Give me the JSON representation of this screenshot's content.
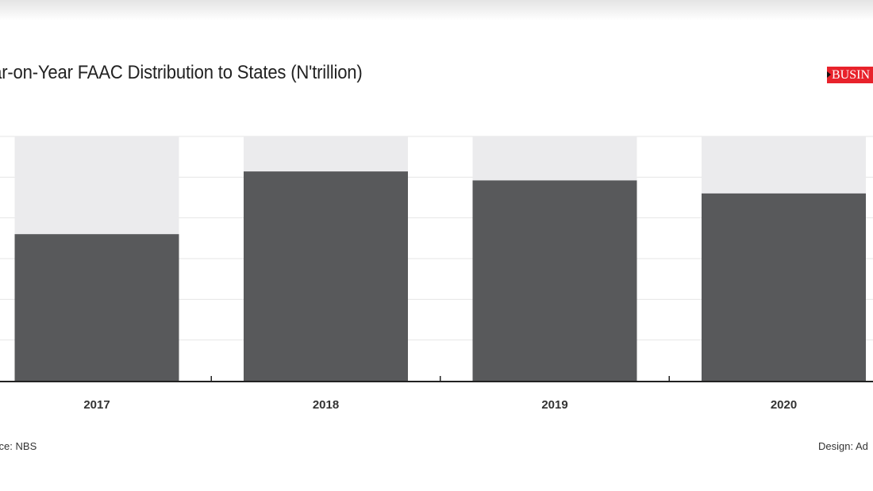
{
  "header": {
    "title": "ear-on-Year FAAC Distribution to States  (N'trillion)",
    "logo_text": "BUSIN"
  },
  "footer": {
    "source": "urce: NBS",
    "credit": "Design: Ad"
  },
  "colors": {
    "bar": "#58595b",
    "bar_background": "#ebebed",
    "grid": "#e6e6e6",
    "axis": "#222222",
    "logo_bg": "#e8222b"
  },
  "chart_data": {
    "type": "bar",
    "title": "ear-on-Year FAAC Distribution to States  (N'trillion)",
    "xlabel": "",
    "ylabel": "",
    "categories": [
      "2017",
      "2018",
      "2019",
      "2020"
    ],
    "values": [
      1.8,
      2.57,
      2.46,
      2.3
    ],
    "ylim": [
      0,
      3
    ],
    "grid": true,
    "legend": "none"
  }
}
